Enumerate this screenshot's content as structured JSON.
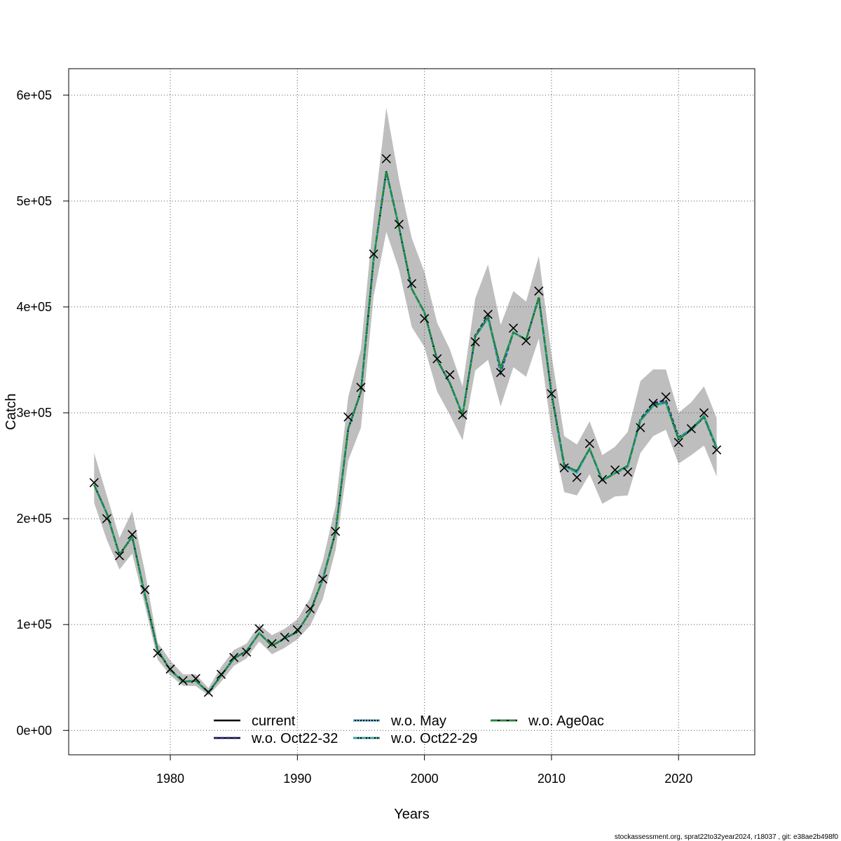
{
  "chart_data": {
    "type": "line",
    "title": "",
    "xlabel": "Years",
    "ylabel": "Catch",
    "xlim": [
      1972,
      2026
    ],
    "ylim": [
      -23000,
      625000
    ],
    "grid": true,
    "x_ticks": [
      1980,
      1990,
      2000,
      2010,
      2020
    ],
    "x_tick_labels": [
      "1980",
      "1990",
      "2000",
      "2010",
      "2020"
    ],
    "y_ticks": [
      0,
      100000,
      200000,
      300000,
      400000,
      500000,
      600000
    ],
    "y_tick_labels": [
      "0e+00",
      "1e+05",
      "2e+05",
      "3e+05",
      "4e+05",
      "5e+05",
      "6e+05"
    ],
    "legend_position": "bottom",
    "x": [
      1974,
      1975,
      1976,
      1977,
      1978,
      1979,
      1980,
      1981,
      1982,
      1983,
      1984,
      1985,
      1986,
      1987,
      1988,
      1989,
      1990,
      1991,
      1992,
      1993,
      1994,
      1995,
      1996,
      1997,
      1998,
      1999,
      2000,
      2001,
      2002,
      2003,
      2004,
      2005,
      2006,
      2007,
      2008,
      2009,
      2010,
      2011,
      2012,
      2013,
      2014,
      2015,
      2016,
      2017,
      2018,
      2019,
      2020,
      2021,
      2022,
      2023
    ],
    "observed": [
      234000,
      200000,
      165000,
      185000,
      133000,
      73000,
      58000,
      47000,
      49000,
      36000,
      53000,
      69000,
      74000,
      96000,
      82000,
      88000,
      95000,
      115000,
      143000,
      188000,
      296000,
      324000,
      450000,
      540000,
      478000,
      422000,
      389000,
      351000,
      336000,
      298000,
      367000,
      393000,
      338000,
      380000,
      368000,
      415000,
      318000,
      248000,
      239000,
      271000,
      237000,
      246000,
      244000,
      286000,
      309000,
      315000,
      272000,
      285000,
      300000,
      265000
    ],
    "band": {
      "upper": [
        262000,
        222000,
        182000,
        207000,
        150000,
        83000,
        66000,
        53000,
        53000,
        40000,
        60000,
        76000,
        82000,
        100000,
        90000,
        96000,
        105000,
        125000,
        160000,
        212000,
        315000,
        360000,
        485000,
        588000,
        520000,
        465000,
        433000,
        385000,
        360000,
        325000,
        408000,
        440000,
        383000,
        415000,
        405000,
        448000,
        355000,
        278000,
        270000,
        292000,
        260000,
        268000,
        282000,
        330000,
        341000,
        341000,
        300000,
        310000,
        325000,
        295000
      ],
      "lower": [
        215000,
        180000,
        152000,
        167000,
        118000,
        67000,
        52000,
        42000,
        42000,
        33000,
        46000,
        61000,
        68000,
        84000,
        72000,
        78000,
        86000,
        99000,
        124000,
        170000,
        255000,
        286000,
        410000,
        471000,
        435000,
        381000,
        362000,
        320000,
        298000,
        274000,
        340000,
        350000,
        306000,
        343000,
        334000,
        370000,
        283000,
        225000,
        222000,
        242000,
        214000,
        221000,
        222000,
        262000,
        278000,
        284000,
        252000,
        260000,
        269000,
        240000
      ]
    },
    "series": [
      {
        "name": "current",
        "color": "#000000",
        "dash": "solid",
        "values": [
          232000,
          205000,
          166000,
          183000,
          128000,
          76000,
          57000,
          46000,
          47000,
          36000,
          52000,
          68000,
          75000,
          92000,
          80000,
          87000,
          93000,
          112000,
          143000,
          187000,
          285000,
          320000,
          445000,
          528000,
          475000,
          417000,
          395000,
          350000,
          328000,
          298000,
          372000,
          390000,
          342000,
          376000,
          369000,
          409000,
          318000,
          250000,
          245000,
          266000,
          236000,
          243000,
          250000,
          293000,
          307000,
          310000,
          275000,
          284000,
          297000,
          267000
        ]
      },
      {
        "name": "w.o. Oct22-32",
        "color": "#1a1a6e",
        "dash": "dash",
        "values": [
          232000,
          205000,
          166000,
          183000,
          128000,
          76000,
          57000,
          46000,
          47000,
          36000,
          52000,
          68000,
          75000,
          92000,
          80000,
          87000,
          93000,
          112000,
          143000,
          187000,
          285000,
          320000,
          445000,
          528000,
          475000,
          417000,
          395000,
          350000,
          328000,
          298000,
          373000,
          392000,
          338000,
          376000,
          369000,
          409000,
          319000,
          251000,
          244000,
          266000,
          236000,
          243000,
          249000,
          294000,
          309000,
          312000,
          277000,
          284000,
          296000,
          266000
        ]
      },
      {
        "name": "w.o. May",
        "color": "#3ab0e0",
        "dash": "dot",
        "values": [
          232000,
          205000,
          166000,
          183000,
          128000,
          76000,
          57000,
          46000,
          47000,
          36000,
          52000,
          68000,
          75000,
          92000,
          80000,
          87000,
          93000,
          112000,
          143000,
          187000,
          285000,
          320000,
          445000,
          528000,
          475000,
          417000,
          395000,
          350000,
          328000,
          298000,
          372000,
          389000,
          340000,
          376000,
          369000,
          409000,
          318000,
          249000,
          243000,
          266000,
          236000,
          243000,
          249000,
          292000,
          306000,
          309000,
          275000,
          285000,
          297000,
          268000
        ]
      },
      {
        "name": "w.o. Oct22-29",
        "color": "#2aa7a7",
        "dash": "dashdot",
        "values": [
          232000,
          205000,
          166000,
          183000,
          128000,
          76000,
          57000,
          46000,
          47000,
          36000,
          52000,
          68000,
          75000,
          92000,
          80000,
          87000,
          93000,
          112000,
          143000,
          187000,
          285000,
          320000,
          445000,
          528000,
          475000,
          417000,
          395000,
          350000,
          328000,
          298000,
          372000,
          390000,
          341000,
          376000,
          369000,
          409000,
          318000,
          249000,
          244000,
          266000,
          236000,
          243000,
          249000,
          293000,
          307000,
          310000,
          276000,
          285000,
          297000,
          267000
        ]
      },
      {
        "name": "w.o. Age0ac",
        "color": "#1e8a3c",
        "dash": "longdash",
        "values": [
          232000,
          205000,
          166000,
          183000,
          128000,
          76000,
          57000,
          46000,
          47000,
          36000,
          52000,
          68000,
          75000,
          92000,
          80000,
          87000,
          93000,
          112000,
          143000,
          187000,
          285000,
          320000,
          445000,
          528000,
          475000,
          417000,
          395000,
          350000,
          328000,
          298000,
          372000,
          390000,
          342000,
          376000,
          369000,
          409000,
          318000,
          250000,
          245000,
          266000,
          236000,
          243000,
          250000,
          293000,
          307000,
          310000,
          275000,
          284000,
          296000,
          267000
        ]
      }
    ],
    "footer": "stockassessment.org, sprat22to32year2024, r18037 , git: e38ae2b498f0"
  }
}
